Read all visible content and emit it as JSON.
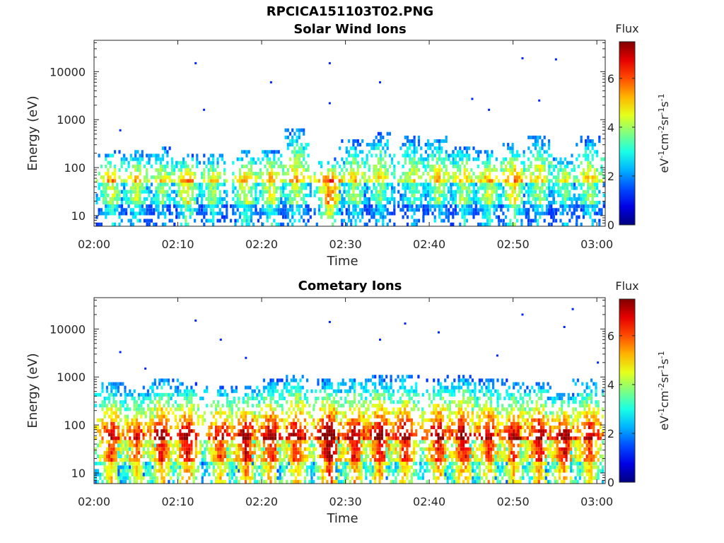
{
  "figure": {
    "filename_title": "RPCICA151103T02.PNG"
  },
  "colors": {
    "axis": "#262626",
    "background": "#ffffff",
    "colormap": "jet"
  },
  "chart_data": [
    {
      "type": "heatmap",
      "title": "Solar Wind Ions",
      "xlabel": "Time",
      "ylabel": "Energy (eV)",
      "x_ticks": [
        "02:00",
        "02:10",
        "02:20",
        "02:30",
        "02:40",
        "02:50",
        "03:00"
      ],
      "x_range": [
        "02:00",
        "03:01"
      ],
      "y_ticks": [
        "10",
        "100",
        "1000",
        "10000"
      ],
      "y_range": [
        6,
        45000
      ],
      "y_scale": "log",
      "grid": false,
      "colorbar": {
        "label": "Flux",
        "unit": "eV-1cm-2sr-1s-1",
        "ticks": [
          "0",
          "2",
          "4",
          "6"
        ],
        "range": [
          0,
          7.5
        ]
      },
      "bursts": [
        {
          "t": "02:02",
          "emax": 250,
          "peak": 4.5
        },
        {
          "t": "02:05",
          "emax": 240,
          "peak": 4.2
        },
        {
          "t": "02:08",
          "emax": 280,
          "peak": 3.8
        },
        {
          "t": "02:11",
          "emax": 200,
          "peak": 4.8
        },
        {
          "t": "02:14",
          "emax": 200,
          "peak": 4.0
        },
        {
          "t": "02:18",
          "emax": 230,
          "peak": 4.4
        },
        {
          "t": "02:21",
          "emax": 250,
          "peak": 4.6
        },
        {
          "t": "02:24",
          "emax": 700,
          "peak": 4.2
        },
        {
          "t": "02:28",
          "emax": 160,
          "peak": 5.8
        },
        {
          "t": "02:31",
          "emax": 400,
          "peak": 4.0
        },
        {
          "t": "02:34",
          "emax": 550,
          "peak": 3.8
        },
        {
          "t": "02:38",
          "emax": 500,
          "peak": 3.6
        },
        {
          "t": "02:41",
          "emax": 450,
          "peak": 4.0
        },
        {
          "t": "02:44",
          "emax": 300,
          "peak": 4.2
        },
        {
          "t": "02:47",
          "emax": 250,
          "peak": 4.4
        },
        {
          "t": "02:50",
          "emax": 350,
          "peak": 4.8
        },
        {
          "t": "02:53",
          "emax": 500,
          "peak": 4.0
        },
        {
          "t": "02:56",
          "emax": 200,
          "peak": 3.6
        },
        {
          "t": "02:59",
          "emax": 450,
          "peak": 4.0
        }
      ],
      "outliers": [
        {
          "t": "02:12",
          "e": 15000
        },
        {
          "t": "02:21",
          "e": 6000
        },
        {
          "t": "02:28",
          "e": 15000
        },
        {
          "t": "02:34",
          "e": 6000
        },
        {
          "t": "02:51",
          "e": 19000
        },
        {
          "t": "02:55",
          "e": 18000
        },
        {
          "t": "02:13",
          "e": 1600
        },
        {
          "t": "02:45",
          "e": 2700
        },
        {
          "t": "02:47",
          "e": 1600
        },
        {
          "t": "02:53",
          "e": 2500
        },
        {
          "t": "02:28",
          "e": 2200
        },
        {
          "t": "02:03",
          "e": 600
        }
      ]
    },
    {
      "type": "heatmap",
      "title": "Cometary Ions",
      "xlabel": "Time",
      "ylabel": "Energy (eV)",
      "x_ticks": [
        "02:00",
        "02:10",
        "02:20",
        "02:30",
        "02:40",
        "02:50",
        "03:00"
      ],
      "x_range": [
        "02:00",
        "03:01"
      ],
      "y_ticks": [
        "10",
        "100",
        "1000",
        "10000"
      ],
      "y_range": [
        6,
        45000
      ],
      "y_scale": "log",
      "grid": false,
      "colorbar": {
        "label": "Flux",
        "unit": "eV-1cm-2sr-1s-1",
        "ticks": [
          "0",
          "2",
          "4",
          "6"
        ],
        "range": [
          0,
          7.5
        ]
      },
      "bursts": [
        {
          "t": "02:02",
          "emax": 800,
          "peak": 6.2
        },
        {
          "t": "02:05",
          "emax": 600,
          "peak": 6.0
        },
        {
          "t": "02:08",
          "emax": 1000,
          "peak": 6.6
        },
        {
          "t": "02:11",
          "emax": 800,
          "peak": 6.8
        },
        {
          "t": "02:15",
          "emax": 700,
          "peak": 6.2
        },
        {
          "t": "02:18",
          "emax": 700,
          "peak": 6.8
        },
        {
          "t": "02:21",
          "emax": 900,
          "peak": 6.6
        },
        {
          "t": "02:24",
          "emax": 1200,
          "peak": 6.4
        },
        {
          "t": "02:28",
          "emax": 900,
          "peak": 7.4
        },
        {
          "t": "02:31",
          "emax": 1000,
          "peak": 6.6
        },
        {
          "t": "02:34",
          "emax": 1100,
          "peak": 6.8
        },
        {
          "t": "02:37",
          "emax": 1200,
          "peak": 6.4
        },
        {
          "t": "02:41",
          "emax": 1000,
          "peak": 6.6
        },
        {
          "t": "02:44",
          "emax": 1100,
          "peak": 6.8
        },
        {
          "t": "02:47",
          "emax": 900,
          "peak": 6.4
        },
        {
          "t": "02:50",
          "emax": 800,
          "peak": 6.4
        },
        {
          "t": "02:53",
          "emax": 800,
          "peak": 6.8
        },
        {
          "t": "02:56",
          "emax": 500,
          "peak": 6.8
        },
        {
          "t": "02:59",
          "emax": 900,
          "peak": 6.2
        }
      ],
      "outliers": [
        {
          "t": "02:12",
          "e": 15000
        },
        {
          "t": "02:28",
          "e": 14000
        },
        {
          "t": "02:37",
          "e": 13000
        },
        {
          "t": "02:41",
          "e": 8500
        },
        {
          "t": "02:51",
          "e": 20000
        },
        {
          "t": "02:56",
          "e": 11000
        },
        {
          "t": "02:57",
          "e": 26000
        },
        {
          "t": "02:15",
          "e": 6000
        },
        {
          "t": "02:03",
          "e": 3300
        },
        {
          "t": "02:06",
          "e": 1500
        },
        {
          "t": "02:48",
          "e": 2800
        },
        {
          "t": "03:00",
          "e": 2000
        },
        {
          "t": "02:34",
          "e": 6000
        },
        {
          "t": "02:18",
          "e": 2500
        }
      ]
    }
  ]
}
